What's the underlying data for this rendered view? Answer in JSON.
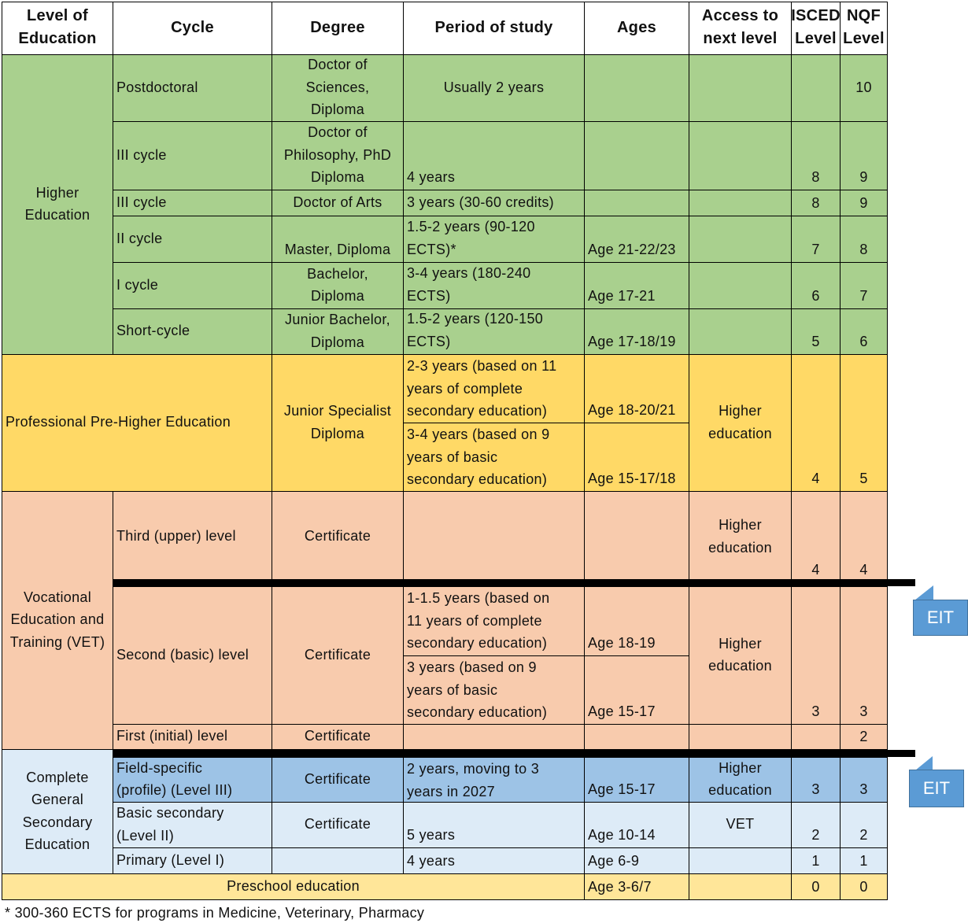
{
  "header": [
    "Level of\nEducation",
    "Cycle",
    "Degree",
    "Period of study",
    "Ages",
    "Access to\nnext level",
    "ISCED\nLevel",
    "NQF\nLevel"
  ],
  "higher": {
    "label": "Higher\nEducation",
    "rows": [
      {
        "cycle": "Postdoctoral",
        "degree": "Doctor of\nSciences,\nDiploma",
        "period": "Usually 2 years",
        "ages": "",
        "access": "",
        "isced": "",
        "nqf": "10"
      },
      {
        "cycle": "III cycle",
        "degree": "Doctor of\nPhilosophy, PhD\nDiploma",
        "period": "4 years",
        "ages": "",
        "access": "",
        "isced": "8",
        "nqf": "9"
      },
      {
        "cycle": "III cycle",
        "degree": "Doctor of Arts",
        "period": "3 years (30-60 credits)",
        "ages": "",
        "access": "",
        "isced": "8",
        "nqf": "9"
      },
      {
        "cycle": "II cycle",
        "degree": "Master, Diploma",
        "period": "1.5-2 years (90-120\nECTS)*",
        "ages": "Age 21-22/23",
        "access": "",
        "isced": "7",
        "nqf": "8"
      },
      {
        "cycle": "I cycle",
        "degree": "Bachelor,\nDiploma",
        "period": "3-4 years (180-240\nECTS)",
        "ages": "Age 17-21",
        "access": "",
        "isced": "6",
        "nqf": "7"
      },
      {
        "cycle": "Short-cycle",
        "degree": "Junior Bachelor,\nDiploma",
        "period": "1.5-2 years (120-150\nECTS)",
        "ages": "Age 17-18/19",
        "access": "",
        "isced": "5",
        "nqf": "6"
      }
    ]
  },
  "pre_higher": {
    "label": "Professional Pre-Higher Education",
    "degree": "Junior Specialist\nDiploma",
    "period_a": "2-3 years (based on 11\nyears of complete\nsecondary education)",
    "ages_a": "Age 18-20/21",
    "period_b": "3-4 years (based on 9\nyears of basic\nsecondary education)",
    "ages_b": "Age 15-17/18",
    "access": "Higher\neducation",
    "isced": "4",
    "nqf": "5"
  },
  "vet": {
    "label": "Vocational\nEducation and\nTraining (VET)",
    "third": {
      "cycle": "Third (upper) level",
      "degree": "Certificate",
      "access": "Higher\neducation",
      "isced": "4",
      "nqf": "4"
    },
    "second": {
      "cycle": "Second (basic) level",
      "degree": "Certificate",
      "period_a": "1-1.5 years (based on\n11 years of complete\nsecondary education)",
      "ages_a": "Age 18-19",
      "period_b": "3 years (based on 9\nyears of basic\nsecondary education)",
      "ages_b": "Age 15-17",
      "access": "Higher\neducation",
      "isced": "3",
      "nqf": "3"
    },
    "first": {
      "cycle": "First (initial) level",
      "degree": "Certificate",
      "nqf": "2"
    }
  },
  "general": {
    "label": "Complete\nGeneral\nSecondary\nEducation",
    "rows": [
      {
        "cycle": "Field-specific\n(profile) (Level III)",
        "degree": "Certificate",
        "period": "2 years, moving to 3\nyears in 2027",
        "ages": "Age 15-17",
        "access": "Higher\neducation",
        "isced": "3",
        "nqf": "3"
      },
      {
        "cycle": "Basic secondary\n(Level II)",
        "degree": "Certificate",
        "period": "5 years",
        "ages": "Age 10-14",
        "access": "VET",
        "isced": "2",
        "nqf": "2"
      },
      {
        "cycle": "Primary (Level I)",
        "degree": "",
        "period": "4 years",
        "ages": "Age 6-9",
        "access": "",
        "isced": "1",
        "nqf": "1"
      }
    ]
  },
  "preschool": {
    "label": "Preschool education",
    "ages": "Age 3-6/7",
    "isced": "0",
    "nqf": "0"
  },
  "callouts": [
    "EIT",
    "EIT"
  ],
  "footnote": "* 300-360 ECTS for programs in Medicine, Veterinary, Pharmacy",
  "colors": {
    "higher": "#a9d08e",
    "pre_higher": "#ffd966",
    "vet": "#f8cbad",
    "general_profile": "#9dc3e6",
    "general": "#ddebf7",
    "preschool": "#ffe699",
    "callout": "#5b9bd5"
  }
}
